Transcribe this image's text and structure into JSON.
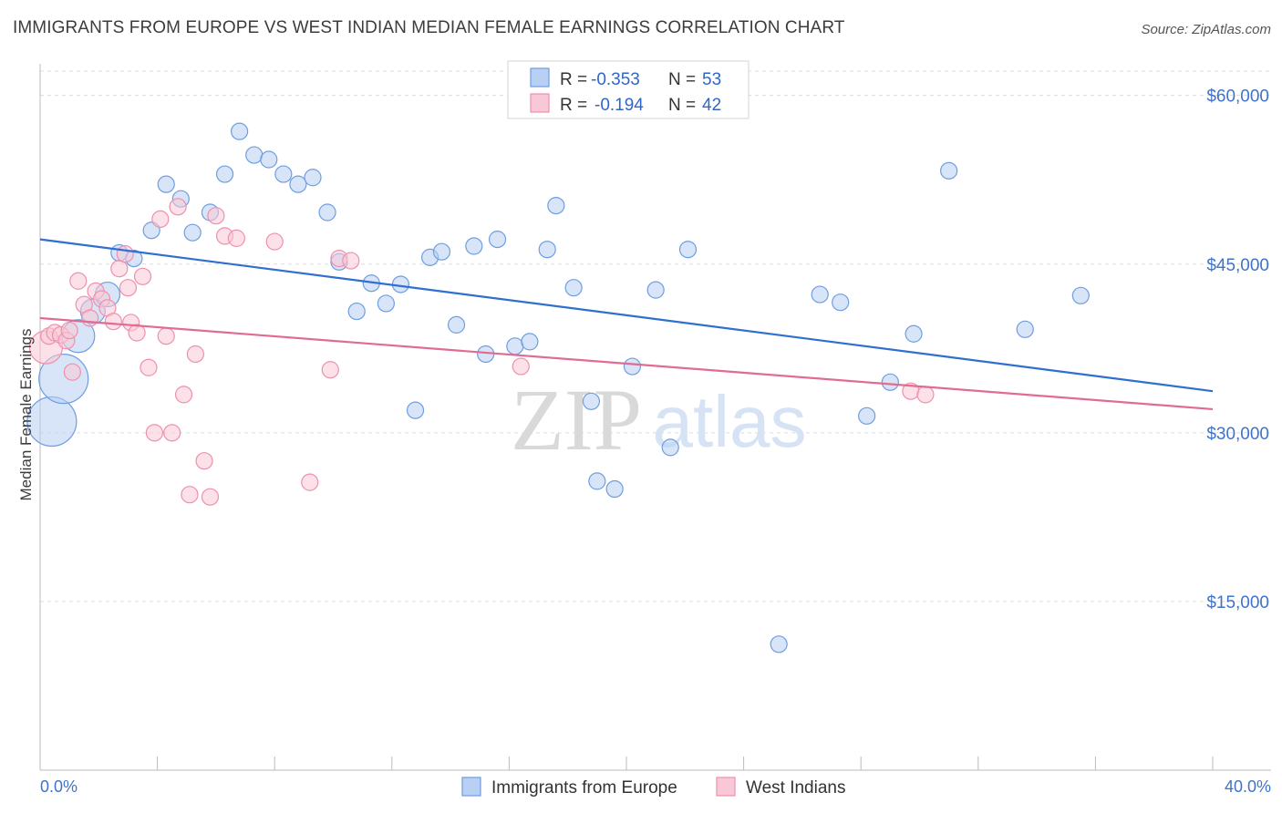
{
  "title": "IMMIGRANTS FROM EUROPE VS WEST INDIAN MEDIAN FEMALE EARNINGS CORRELATION CHART",
  "source": "Source: ZipAtlas.com",
  "watermark": {
    "zip": "ZIP",
    "atlas": "atlas"
  },
  "legend_top": [
    {
      "r_label": "R = ",
      "r_value": "-0.353",
      "n_label": "N = ",
      "n_value": "53",
      "fill": "#b8d0f3",
      "stroke": "#6f9de0"
    },
    {
      "r_label": "R = ",
      "r_value": "-0.194",
      "n_label": "N = ",
      "n_value": "42",
      "fill": "#f9c8d6",
      "stroke": "#ee90ad"
    }
  ],
  "chart_data": {
    "type": "scatter",
    "ylabel": "Median Female Earnings",
    "xlabel": "",
    "xlim": [
      0,
      40
    ],
    "ylim": [
      0,
      62000
    ],
    "x_tick_labels": [
      "0.0%",
      "40.0%"
    ],
    "x_tick_values": [
      0,
      40
    ],
    "y_ticks": [
      {
        "value": 15000,
        "label": "$15,000"
      },
      {
        "value": 30000,
        "label": "$30,000"
      },
      {
        "value": 45000,
        "label": "$45,000"
      },
      {
        "value": 60000,
        "label": "$60,000"
      }
    ],
    "series": [
      {
        "name": "Immigrants from Europe",
        "color": "#6f9de0",
        "fill": "#b8d0f3",
        "trend": {
          "x": [
            0,
            40
          ],
          "y": [
            47200,
            33700
          ],
          "color": "#2f6fd0"
        },
        "points": [
          {
            "x": 0.4,
            "y": 31000,
            "s": 3
          },
          {
            "x": 0.8,
            "y": 34800,
            "s": 3
          },
          {
            "x": 1.3,
            "y": 38600,
            "s": 2
          },
          {
            "x": 1.8,
            "y": 40800,
            "s": 1.5
          },
          {
            "x": 2.3,
            "y": 42300,
            "s": 1.5
          },
          {
            "x": 2.7,
            "y": 46000,
            "s": 1
          },
          {
            "x": 3.2,
            "y": 45500,
            "s": 1
          },
          {
            "x": 3.8,
            "y": 48000,
            "s": 1
          },
          {
            "x": 4.3,
            "y": 52100,
            "s": 1
          },
          {
            "x": 4.8,
            "y": 50800,
            "s": 1
          },
          {
            "x": 5.2,
            "y": 47800,
            "s": 1
          },
          {
            "x": 5.8,
            "y": 49600,
            "s": 1
          },
          {
            "x": 6.3,
            "y": 53000,
            "s": 1
          },
          {
            "x": 6.8,
            "y": 56800,
            "s": 1
          },
          {
            "x": 7.3,
            "y": 54700,
            "s": 1
          },
          {
            "x": 7.8,
            "y": 54300,
            "s": 1
          },
          {
            "x": 8.3,
            "y": 53000,
            "s": 1
          },
          {
            "x": 8.8,
            "y": 52100,
            "s": 1
          },
          {
            "x": 9.3,
            "y": 52700,
            "s": 1
          },
          {
            "x": 9.8,
            "y": 49600,
            "s": 1
          },
          {
            "x": 10.2,
            "y": 45200,
            "s": 1
          },
          {
            "x": 10.8,
            "y": 40800,
            "s": 1
          },
          {
            "x": 11.3,
            "y": 43300,
            "s": 1
          },
          {
            "x": 11.8,
            "y": 41500,
            "s": 1
          },
          {
            "x": 12.3,
            "y": 43200,
            "s": 1
          },
          {
            "x": 12.8,
            "y": 32000,
            "s": 1
          },
          {
            "x": 13.3,
            "y": 45600,
            "s": 1
          },
          {
            "x": 13.7,
            "y": 46100,
            "s": 1
          },
          {
            "x": 14.2,
            "y": 39600,
            "s": 1
          },
          {
            "x": 14.8,
            "y": 46600,
            "s": 1
          },
          {
            "x": 15.2,
            "y": 37000,
            "s": 1
          },
          {
            "x": 15.6,
            "y": 47200,
            "s": 1
          },
          {
            "x": 16.2,
            "y": 37700,
            "s": 1
          },
          {
            "x": 16.7,
            "y": 38100,
            "s": 1
          },
          {
            "x": 17.3,
            "y": 46300,
            "s": 1
          },
          {
            "x": 17.6,
            "y": 50200,
            "s": 1
          },
          {
            "x": 18.2,
            "y": 42900,
            "s": 1
          },
          {
            "x": 18.8,
            "y": 32800,
            "s": 1
          },
          {
            "x": 19.0,
            "y": 25700,
            "s": 1
          },
          {
            "x": 19.6,
            "y": 25000,
            "s": 1
          },
          {
            "x": 20.2,
            "y": 35900,
            "s": 1
          },
          {
            "x": 21.0,
            "y": 42700,
            "s": 1
          },
          {
            "x": 21.5,
            "y": 28700,
            "s": 1
          },
          {
            "x": 22.1,
            "y": 46300,
            "s": 1
          },
          {
            "x": 25.2,
            "y": 11200,
            "s": 1
          },
          {
            "x": 26.6,
            "y": 42300,
            "s": 1
          },
          {
            "x": 27.3,
            "y": 41600,
            "s": 1
          },
          {
            "x": 28.2,
            "y": 31500,
            "s": 1
          },
          {
            "x": 29.0,
            "y": 34500,
            "s": 1
          },
          {
            "x": 29.8,
            "y": 38800,
            "s": 1
          },
          {
            "x": 31.0,
            "y": 53300,
            "s": 1
          },
          {
            "x": 33.6,
            "y": 39200,
            "s": 1
          },
          {
            "x": 35.5,
            "y": 42200,
            "s": 1
          }
        ]
      },
      {
        "name": "West Indians",
        "color": "#ee90ad",
        "fill": "#f9c8d6",
        "trend": {
          "x": [
            0,
            40
          ],
          "y": [
            40200,
            32100
          ],
          "color": "#e06b93"
        },
        "points": [
          {
            "x": 0.2,
            "y": 37600,
            "s": 2
          },
          {
            "x": 0.3,
            "y": 38600,
            "s": 1
          },
          {
            "x": 0.5,
            "y": 38900,
            "s": 1
          },
          {
            "x": 0.7,
            "y": 38700,
            "s": 1
          },
          {
            "x": 0.9,
            "y": 38200,
            "s": 1
          },
          {
            "x": 1.0,
            "y": 39100,
            "s": 1
          },
          {
            "x": 1.1,
            "y": 35400,
            "s": 1
          },
          {
            "x": 1.3,
            "y": 43500,
            "s": 1
          },
          {
            "x": 1.5,
            "y": 41400,
            "s": 1
          },
          {
            "x": 1.7,
            "y": 40200,
            "s": 1
          },
          {
            "x": 1.9,
            "y": 42600,
            "s": 1
          },
          {
            "x": 2.1,
            "y": 41900,
            "s": 1
          },
          {
            "x": 2.3,
            "y": 41100,
            "s": 1
          },
          {
            "x": 2.5,
            "y": 39900,
            "s": 1
          },
          {
            "x": 2.7,
            "y": 44600,
            "s": 1
          },
          {
            "x": 2.9,
            "y": 45900,
            "s": 1
          },
          {
            "x": 3.0,
            "y": 42900,
            "s": 1
          },
          {
            "x": 3.1,
            "y": 39800,
            "s": 1
          },
          {
            "x": 3.3,
            "y": 38900,
            "s": 1
          },
          {
            "x": 3.5,
            "y": 43900,
            "s": 1
          },
          {
            "x": 3.7,
            "y": 35800,
            "s": 1
          },
          {
            "x": 3.9,
            "y": 30000,
            "s": 1
          },
          {
            "x": 4.1,
            "y": 49000,
            "s": 1
          },
          {
            "x": 4.3,
            "y": 38600,
            "s": 1
          },
          {
            "x": 4.5,
            "y": 30000,
            "s": 1
          },
          {
            "x": 4.7,
            "y": 50100,
            "s": 1
          },
          {
            "x": 4.9,
            "y": 33400,
            "s": 1
          },
          {
            "x": 5.1,
            "y": 24500,
            "s": 1
          },
          {
            "x": 5.3,
            "y": 37000,
            "s": 1
          },
          {
            "x": 5.6,
            "y": 27500,
            "s": 1
          },
          {
            "x": 5.8,
            "y": 24300,
            "s": 1
          },
          {
            "x": 6.0,
            "y": 49300,
            "s": 1
          },
          {
            "x": 6.3,
            "y": 47500,
            "s": 1
          },
          {
            "x": 6.7,
            "y": 47300,
            "s": 1
          },
          {
            "x": 8.0,
            "y": 47000,
            "s": 1
          },
          {
            "x": 9.2,
            "y": 25600,
            "s": 1
          },
          {
            "x": 9.9,
            "y": 35600,
            "s": 1
          },
          {
            "x": 10.2,
            "y": 45500,
            "s": 1
          },
          {
            "x": 10.6,
            "y": 45300,
            "s": 1
          },
          {
            "x": 16.4,
            "y": 35900,
            "s": 1
          },
          {
            "x": 29.7,
            "y": 33700,
            "s": 1
          },
          {
            "x": 30.2,
            "y": 33400,
            "s": 1
          }
        ]
      }
    ]
  },
  "legend_bottom": [
    {
      "label": "Immigrants from Europe",
      "fill": "#b8d0f3",
      "stroke": "#6f9de0"
    },
    {
      "label": "West Indians",
      "fill": "#f9c8d6",
      "stroke": "#ee90ad"
    }
  ]
}
